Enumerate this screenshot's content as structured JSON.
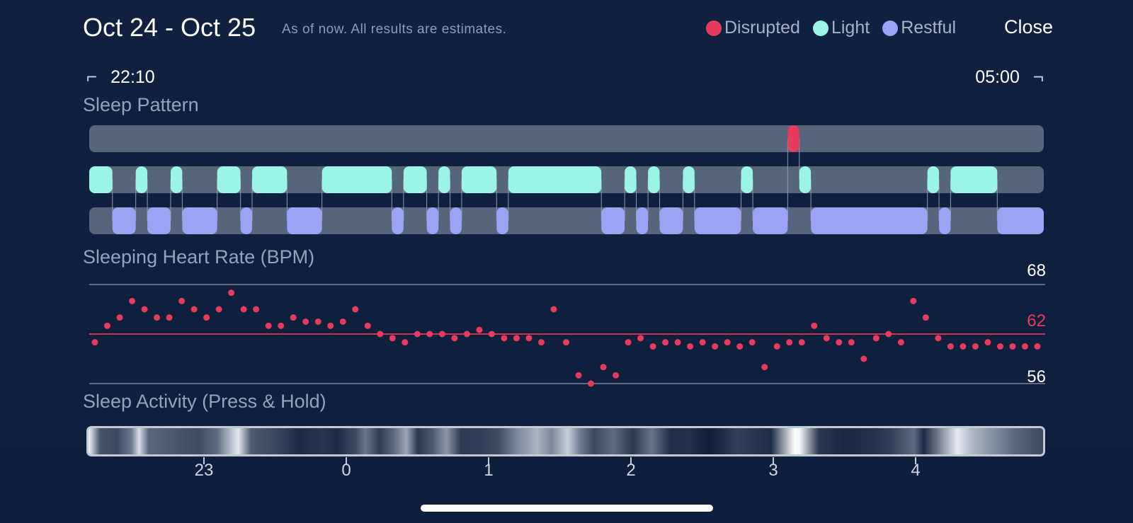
{
  "header": {
    "date_range": "Oct 24 - Oct 25",
    "note": "As of now. All results are estimates.",
    "close_label": "Close"
  },
  "legend": [
    {
      "label": "Disrupted",
      "color": "#e63a5e"
    },
    {
      "label": "Light",
      "color": "#9af5e8"
    },
    {
      "label": "Restful",
      "color": "#9aa3f4"
    }
  ],
  "time_range": {
    "start": "22:10",
    "end": "05:00"
  },
  "sections": {
    "sleep_pattern": "Sleep Pattern",
    "heart_rate": "Sleeping Heart Rate (BPM)",
    "activity": "Sleep Activity (Press & Hold)"
  },
  "chart_data": [
    {
      "type": "timeline",
      "title": "Sleep Pattern",
      "x_unit": "hours after 22:00",
      "x_range": [
        0.1667,
        5.0
      ],
      "lanes": [
        "Disrupted",
        "Light",
        "Restful"
      ],
      "segments": [
        {
          "stage": "Light",
          "start": 0.167,
          "end": 0.333
        },
        {
          "stage": "Restful",
          "start": 0.333,
          "end": 0.5
        },
        {
          "stage": "Light",
          "start": 0.5,
          "end": 0.583
        },
        {
          "stage": "Restful",
          "start": 0.583,
          "end": 0.75
        },
        {
          "stage": "Light",
          "start": 0.75,
          "end": 0.833
        },
        {
          "stage": "Restful",
          "start": 0.833,
          "end": 1.083
        },
        {
          "stage": "Light",
          "start": 1.083,
          "end": 1.25
        },
        {
          "stage": "Restful",
          "start": 1.25,
          "end": 1.333
        },
        {
          "stage": "Light",
          "start": 1.333,
          "end": 1.583
        },
        {
          "stage": "Restful",
          "start": 1.583,
          "end": 1.833
        },
        {
          "stage": "Light",
          "start": 1.833,
          "end": 2.333
        },
        {
          "stage": "Restful",
          "start": 2.333,
          "end": 2.417
        },
        {
          "stage": "Light",
          "start": 2.417,
          "end": 2.583
        },
        {
          "stage": "Restful",
          "start": 2.583,
          "end": 2.667
        },
        {
          "stage": "Light",
          "start": 2.667,
          "end": 2.75
        },
        {
          "stage": "Restful",
          "start": 2.75,
          "end": 2.833
        },
        {
          "stage": "Light",
          "start": 2.833,
          "end": 3.083
        },
        {
          "stage": "Restful",
          "start": 3.083,
          "end": 3.167
        },
        {
          "stage": "Light",
          "start": 3.167,
          "end": 3.833
        },
        {
          "stage": "Restful",
          "start": 3.833,
          "end": 4.0
        },
        {
          "stage": "Light",
          "start": 4.0,
          "end": 4.083
        },
        {
          "stage": "Restful",
          "start": 4.083,
          "end": 4.167
        },
        {
          "stage": "Light",
          "start": 4.167,
          "end": 4.25
        },
        {
          "stage": "Restful",
          "start": 4.25,
          "end": 4.417
        },
        {
          "stage": "Light",
          "start": 4.417,
          "end": 4.5
        },
        {
          "stage": "Restful",
          "start": 4.5,
          "end": 4.833
        },
        {
          "stage": "Light",
          "start": 4.833,
          "end": 4.917
        },
        {
          "stage": "Restful",
          "start": 4.917,
          "end": 5.167
        },
        {
          "stage": "Disrupted",
          "start": 5.167,
          "end": 5.25
        },
        {
          "stage": "Light",
          "start": 5.25,
          "end": 5.333
        },
        {
          "stage": "Restful",
          "start": 5.333,
          "end": 6.167
        },
        {
          "stage": "Light",
          "start": 6.167,
          "end": 6.25
        },
        {
          "stage": "Restful",
          "start": 6.25,
          "end": 6.333
        },
        {
          "stage": "Light",
          "start": 6.333,
          "end": 6.667
        },
        {
          "stage": "Restful",
          "start": 6.667,
          "end": 7.0
        }
      ]
    },
    {
      "type": "scatter",
      "title": "Sleeping Heart Rate (BPM)",
      "ylabel": "BPM",
      "ylim": [
        56,
        68
      ],
      "reference_lines": [
        {
          "value": 68,
          "label": "68"
        },
        {
          "value": 62,
          "label": "62",
          "highlight": true
        },
        {
          "value": 56,
          "label": "56"
        }
      ],
      "x_step_minutes": 5,
      "values": [
        61,
        63,
        64,
        66,
        65,
        64,
        64,
        66,
        65,
        64,
        65,
        67,
        65,
        65,
        63,
        63,
        64,
        63.5,
        63.5,
        63,
        63.5,
        65,
        63,
        62,
        61.5,
        61,
        62,
        62,
        62,
        61.5,
        62,
        62.5,
        62,
        61.5,
        61.5,
        61.5,
        61,
        65,
        61,
        57,
        56,
        58,
        57,
        61,
        61.5,
        60.5,
        61,
        61,
        60.5,
        61,
        60.5,
        61,
        60.5,
        61,
        58,
        60.5,
        61,
        61,
        63,
        61.5,
        61,
        61,
        59,
        61.5,
        62,
        61,
        66,
        64,
        61.5,
        60.5,
        60.5,
        60.5,
        61,
        60.5,
        60.5,
        60.5,
        60.5
      ]
    },
    {
      "type": "heatmap",
      "title": "Sleep Activity (Press & Hold)",
      "x_ticks": [
        "23",
        "0",
        "1",
        "2",
        "3",
        "4"
      ]
    }
  ]
}
